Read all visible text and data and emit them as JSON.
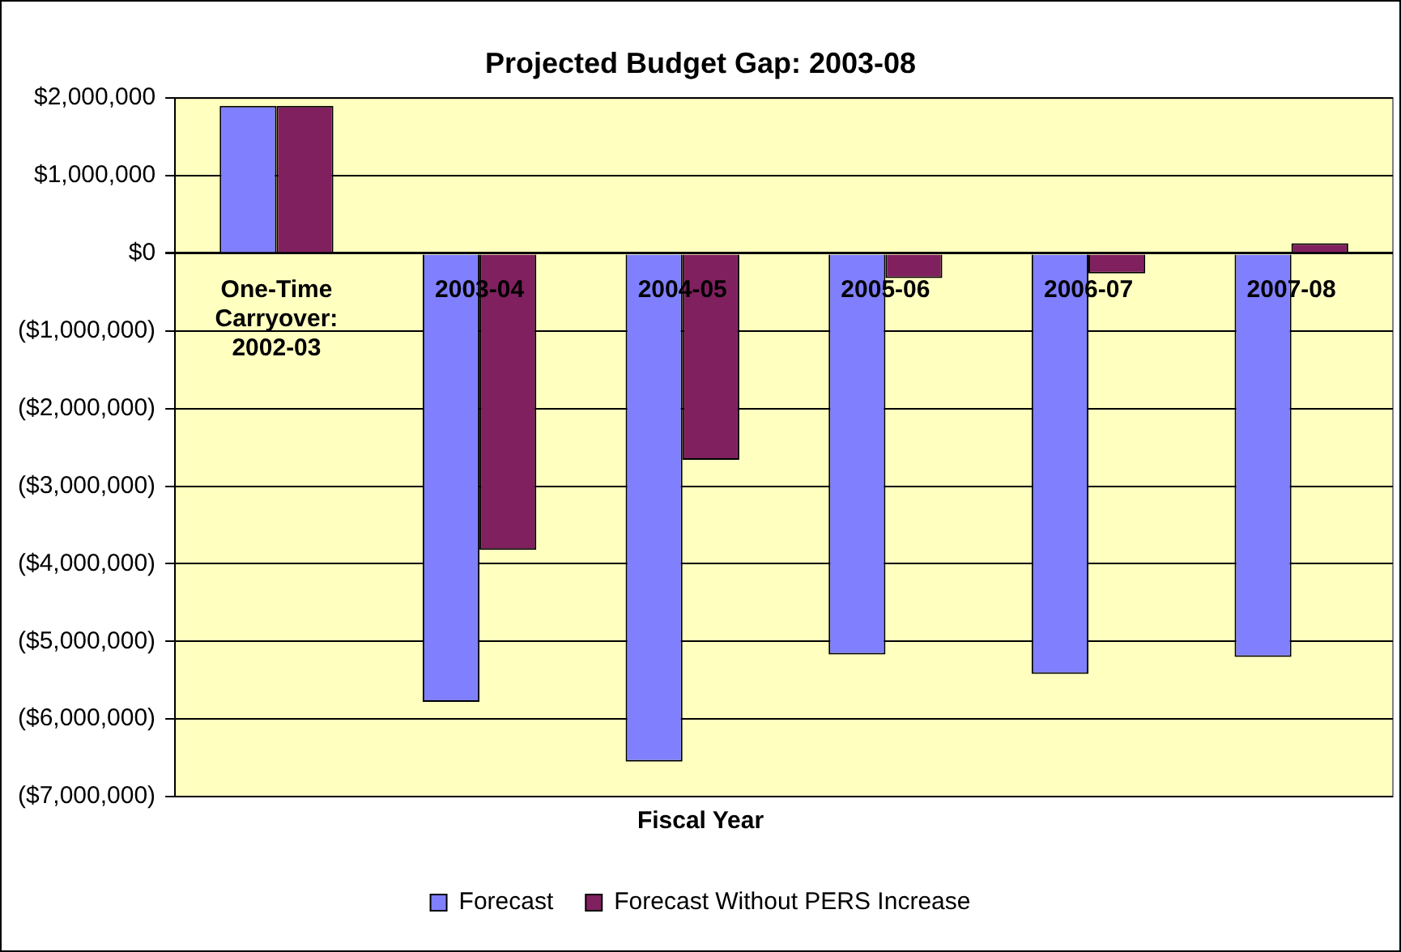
{
  "chart_data": {
    "type": "bar",
    "title": "Projected Budget Gap: 2003-08",
    "xlabel": "Fiscal Year",
    "categories": [
      "One-Time Carryover: 2002-03",
      "2003-04",
      "2004-05",
      "2005-06",
      "2006-07",
      "2007-08"
    ],
    "series": [
      {
        "name": "Forecast",
        "color": "#8080ff",
        "values": [
          1900000,
          -5780000,
          -6550000,
          -5170000,
          -5420000,
          -5200000
        ]
      },
      {
        "name": "Forecast Without PERS Increase",
        "color": "#80205f",
        "values": [
          1900000,
          -3820000,
          -2660000,
          -320000,
          -260000,
          130000
        ]
      }
    ],
    "ylim": [
      -7000000,
      2000000
    ],
    "yticks": [
      {
        "value": -7000000,
        "label": "($7,000,000)"
      },
      {
        "value": -6000000,
        "label": "($6,000,000)"
      },
      {
        "value": -5000000,
        "label": "($5,000,000)"
      },
      {
        "value": -4000000,
        "label": "($4,000,000)"
      },
      {
        "value": -3000000,
        "label": "($3,000,000)"
      },
      {
        "value": -2000000,
        "label": "($2,000,000)"
      },
      {
        "value": -1000000,
        "label": "($1,000,000)"
      },
      {
        "value": 0,
        "label": "$0"
      },
      {
        "value": 1000000,
        "label": "$1,000,000"
      },
      {
        "value": 2000000,
        "label": "$2,000,000"
      }
    ],
    "grid": "y",
    "legend": "bottom"
  }
}
